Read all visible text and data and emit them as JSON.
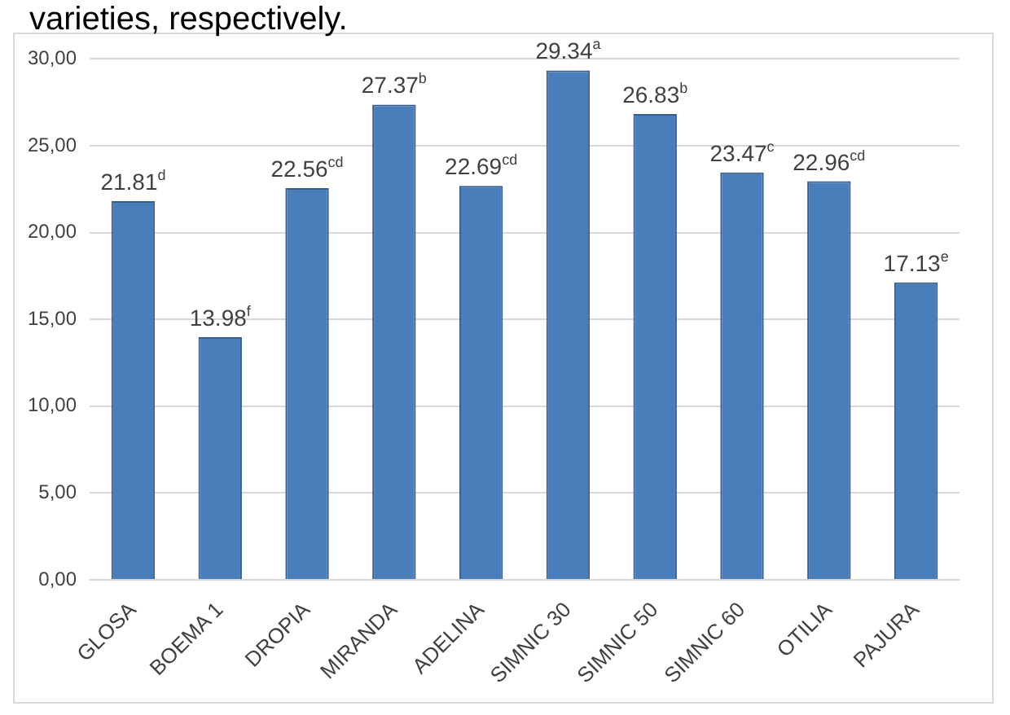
{
  "chart_data": {
    "type": "bar",
    "annotations": [
      "varieties, respectively."
    ],
    "categories": [
      "GLOSA",
      "BOEMA 1",
      "DROPIA",
      "MIRANDA",
      "ADELINA",
      "SIMNIC 30",
      "SIMNIC 50",
      "SIMNIC 60",
      "OTILIA",
      "PAJURA"
    ],
    "values": [
      21.81,
      13.98,
      22.56,
      27.37,
      22.69,
      29.34,
      26.83,
      23.47,
      22.96,
      17.13
    ],
    "value_labels": [
      "21.81$^{d}$",
      "13.98$^{f}$",
      "22.56$^{cd}$",
      "27.37$^{b}$",
      "22.69$^{cd}$",
      "29.34$^{a}$",
      "26.83$^{b}$",
      "23.47$^{c}$",
      "22.96$^{cd}$",
      "17.13$^{e}$"
    ],
    "color": "#4a7ebb",
    "ylim": [
      0,
      30
    ],
    "yticks": [
      {
        "value": 0,
        "label": "0,00"
      },
      {
        "value": 5,
        "label": "5,00"
      },
      {
        "value": 10,
        "label": "10,00"
      },
      {
        "value": 15,
        "label": "15,00"
      },
      {
        "value": 20,
        "label": "20,00"
      },
      {
        "value": 25,
        "label": "25,00"
      },
      {
        "value": 30,
        "label": "30,00"
      }
    ],
    "grid": "y",
    "legend": false
  }
}
